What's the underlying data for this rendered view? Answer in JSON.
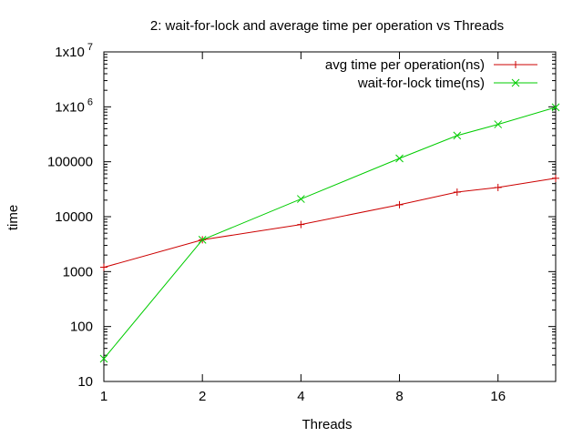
{
  "chart_data": {
    "type": "line",
    "title": "2: wait-for-lock and average time per operation vs Threads",
    "xlabel": "Threads",
    "ylabel": "time",
    "x_scale": "log2",
    "y_scale": "log10",
    "xlim": [
      1,
      24
    ],
    "ylim": [
      10,
      10000000
    ],
    "grid": false,
    "legend_position": "top-right",
    "x_ticks": [
      {
        "value": 1,
        "label": "1"
      },
      {
        "value": 2,
        "label": "2"
      },
      {
        "value": 4,
        "label": "4"
      },
      {
        "value": 8,
        "label": "8"
      },
      {
        "value": 16,
        "label": "16"
      }
    ],
    "y_ticks": [
      {
        "value": 10,
        "label": "10"
      },
      {
        "value": 100,
        "label": "100"
      },
      {
        "value": 1000,
        "label": "1000"
      },
      {
        "value": 10000,
        "label": "10000"
      },
      {
        "value": 100000,
        "label": "100000"
      },
      {
        "value": 1000000,
        "mantissa": "1x10",
        "exponent": "6"
      },
      {
        "value": 10000000,
        "mantissa": "1x10",
        "exponent": "7"
      }
    ],
    "series": [
      {
        "name": "avg time per operation(ns)",
        "color": "#cc0000",
        "marker": "plus",
        "points": [
          {
            "x": 1,
            "y": 1200
          },
          {
            "x": 2,
            "y": 3800
          },
          {
            "x": 4,
            "y": 7200
          },
          {
            "x": 8,
            "y": 16500
          },
          {
            "x": 12,
            "y": 28000
          },
          {
            "x": 16,
            "y": 34000
          },
          {
            "x": 24,
            "y": 50000
          }
        ]
      },
      {
        "name": "wait-for-lock time(ns)",
        "color": "#00cc00",
        "marker": "cross",
        "points": [
          {
            "x": 1,
            "y": 26
          },
          {
            "x": 2,
            "y": 3800
          },
          {
            "x": 4,
            "y": 21000
          },
          {
            "x": 8,
            "y": 115000
          },
          {
            "x": 12,
            "y": 300000
          },
          {
            "x": 16,
            "y": 480000
          },
          {
            "x": 24,
            "y": 980000
          }
        ]
      }
    ]
  }
}
